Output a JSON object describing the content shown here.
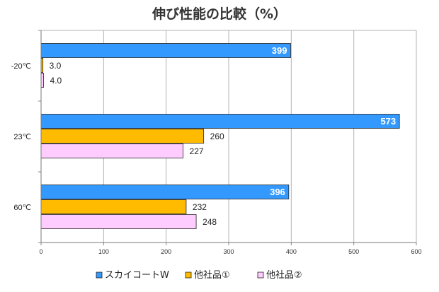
{
  "chart_data": {
    "type": "bar",
    "orientation": "horizontal",
    "title": "伸び性能の比較（%）",
    "categories": [
      "-20℃",
      "23℃",
      "60℃"
    ],
    "xlim": [
      0,
      600
    ],
    "xticks": [
      0,
      100,
      200,
      300,
      400,
      500,
      600
    ],
    "grid": true,
    "legend_position": "bottom",
    "series": [
      {
        "name": "スカイコートW",
        "values": [
          399,
          573,
          396
        ],
        "labels": [
          "399",
          "573",
          "396"
        ],
        "color": "#3399ff",
        "label_style": "inside"
      },
      {
        "name": "他社品①",
        "values": [
          3.0,
          260,
          232
        ],
        "labels": [
          "3.0",
          "260",
          "232"
        ],
        "color": "#ffbb00",
        "label_style": "outside"
      },
      {
        "name": "他社品②",
        "values": [
          4.0,
          227,
          248
        ],
        "labels": [
          "4.0",
          "227",
          "248"
        ],
        "color": "#ffccff",
        "label_style": "outside"
      }
    ]
  }
}
